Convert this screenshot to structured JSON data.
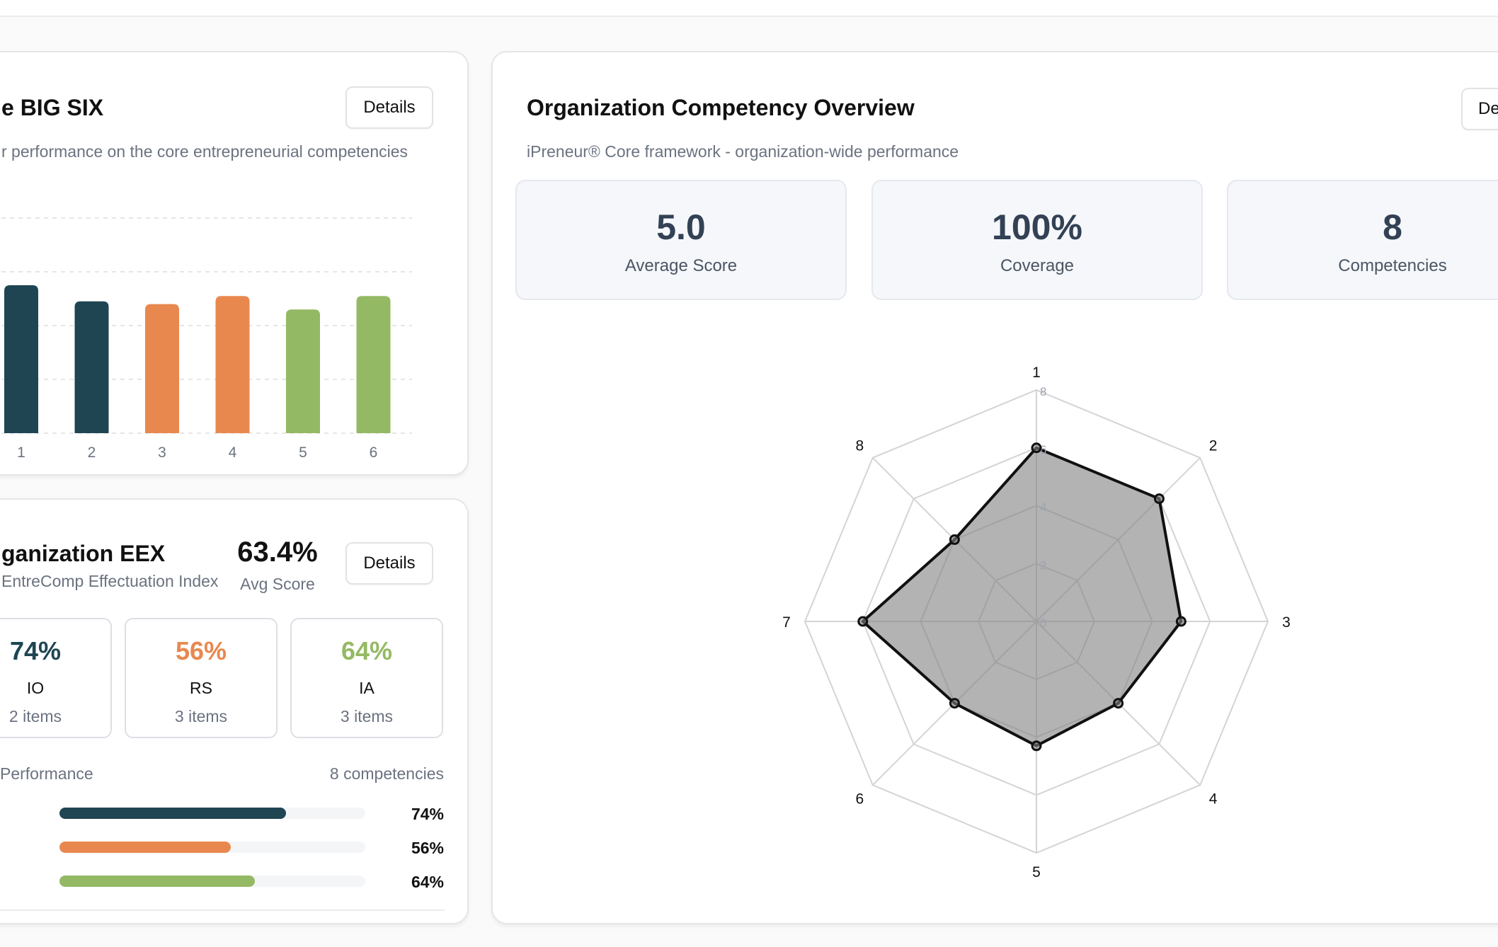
{
  "colors": {
    "navy": "#1f4552",
    "orange": "#e8884f",
    "green": "#94b964",
    "slate": "#334155"
  },
  "big_six_card": {
    "title": "e BIG SIX",
    "subtitle": "r performance on the core entrepreneurial competencies",
    "details_label": "Details"
  },
  "eex_card": {
    "title": "ganization EEX",
    "subtitle": "EntreComp Effectuation Index",
    "avg_value": "63.4%",
    "avg_label": "Avg Score",
    "details_label": "Details",
    "boxes": [
      {
        "value": "74%",
        "name": "IO",
        "items": "2 items",
        "color": "#1f4552"
      },
      {
        "value": "56%",
        "name": "RS",
        "items": "3 items",
        "color": "#e8884f"
      },
      {
        "value": "64%",
        "name": "IA",
        "items": "3 items",
        "color": "#94b964"
      }
    ],
    "performance_label": "Performance",
    "competencies_count": "8 competencies",
    "progress": [
      {
        "label": "74%",
        "value": 0.74,
        "color": "#1f4552"
      },
      {
        "label": "56%",
        "value": 0.56,
        "color": "#e8884f"
      },
      {
        "label": "64%",
        "value": 0.64,
        "color": "#94b964"
      }
    ]
  },
  "overview_card": {
    "title": "Organization Competency Overview",
    "subtitle": "iPreneur® Core framework - organization-wide performance",
    "details_label": "De",
    "stats": [
      {
        "value": "5.0",
        "label": "Average Score"
      },
      {
        "value": "100%",
        "label": "Coverage"
      },
      {
        "value": "8",
        "label": "Competencies"
      }
    ]
  },
  "chart_data": [
    {
      "type": "bar",
      "categories": [
        "1",
        "2",
        "3",
        "4",
        "5",
        "6"
      ],
      "values": [
        5.5,
        4.9,
        4.8,
        5.1,
        4.6,
        5.1
      ],
      "colors": [
        "#1f4552",
        "#1f4552",
        "#e8884f",
        "#e8884f",
        "#94b964",
        "#94b964"
      ],
      "ylim": [
        0,
        8
      ],
      "grid": true
    },
    {
      "type": "radar",
      "categories": [
        "1",
        "2",
        "3",
        "4",
        "5",
        "6",
        "7",
        "8"
      ],
      "values": [
        6,
        6,
        5,
        4,
        4.3,
        4,
        6,
        4
      ],
      "rlim": [
        0,
        8
      ],
      "r_ticks": [
        "0",
        "2",
        "4",
        "6",
        "8"
      ],
      "grid": true
    }
  ]
}
